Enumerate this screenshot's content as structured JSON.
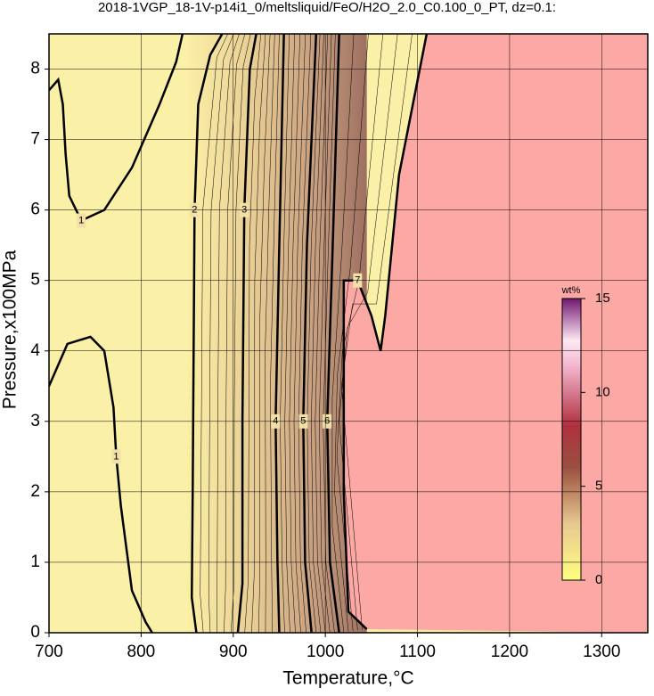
{
  "chart_data": {
    "type": "contour",
    "title": "2018-1VGP_18-1V-p14i1_0/meltsliquid/FeO/H2O_2.0_C0.100_0_PT, dz=0.1:",
    "x_label": "Temperature,°C",
    "y_label": "Pressure,x100MPa",
    "xlim": [
      700,
      1350
    ],
    "ylim": [
      0,
      8.5
    ],
    "xticks": [
      700,
      800,
      900,
      1000,
      1100,
      1200,
      1300
    ],
    "yticks": [
      0,
      1,
      2,
      3,
      4,
      5,
      6,
      7,
      8
    ],
    "grid": true,
    "contours": [
      {
        "level": 1,
        "x": [
          700,
          720,
          745,
          760,
          770,
          773,
          778,
          790,
          805,
          812
        ],
        "y": [
          3.5,
          4.1,
          4.2,
          4.0,
          3.2,
          2.5,
          1.8,
          0.6,
          0.15,
          0
        ]
      },
      {
        "level": 1,
        "x": [
          700,
          710,
          715,
          718,
          722,
          735,
          760,
          790,
          820,
          838,
          845
        ],
        "y": [
          7.7,
          7.85,
          7.5,
          6.8,
          6.2,
          5.85,
          6.0,
          6.6,
          7.5,
          8.1,
          8.5
        ]
      },
      {
        "level": 2,
        "x": [
          860,
          855,
          856,
          857,
          858,
          862,
          875,
          888
        ],
        "y": [
          0,
          0.5,
          2,
          4,
          6,
          7.5,
          8.2,
          8.5
        ]
      },
      {
        "level": 3,
        "x": [
          905,
          910,
          910,
          912,
          918,
          925
        ],
        "y": [
          0,
          0.7,
          3,
          6,
          8,
          8.5
        ]
      },
      {
        "level": 4,
        "x": [
          950,
          948,
          946,
          950,
          955
        ],
        "y": [
          0,
          1,
          3,
          5.5,
          8.5
        ]
      },
      {
        "level": 5,
        "x": [
          985,
          978,
          976,
          980,
          990
        ],
        "y": [
          0,
          1,
          3,
          5.5,
          8.5
        ]
      },
      {
        "level": 6,
        "x": [
          1015,
          1005,
          1002,
          1008,
          1015
        ],
        "y": [
          0,
          1,
          3,
          5.5,
          8.5
        ]
      },
      {
        "level": 7,
        "x": [
          1045,
          1025,
          1020,
          1020,
          1020,
          1035,
          1050,
          1060,
          1065,
          1080,
          1110
        ],
        "y": [
          0.05,
          0.3,
          2,
          4,
          5,
          5,
          4.5,
          4.0,
          4.5,
          6.5,
          8.5
        ]
      }
    ],
    "colorbar": {
      "label": "wt%",
      "lim": [
        0,
        15
      ],
      "ticks": [
        0,
        5,
        10,
        15
      ]
    }
  }
}
